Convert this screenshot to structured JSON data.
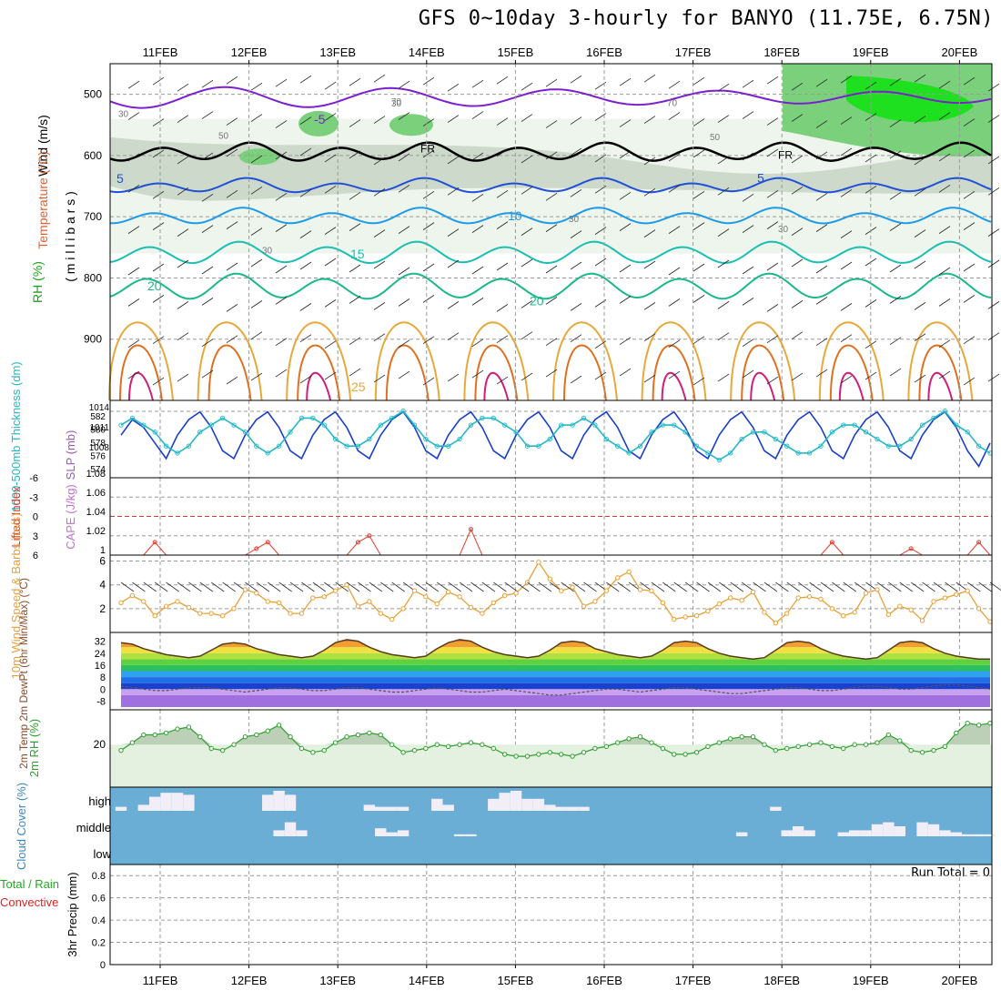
{
  "title": "GFS 0~10day 3-hourly for BANYO (11.75E, 6.75N)",
  "colors": {
    "frame": "#000000",
    "grid": "#9a9a9a",
    "temp_neg": "#7b1fd1",
    "temp_0": "#000000",
    "temp_5": "#2050d8",
    "temp_10": "#1e9be8",
    "temp_15": "#1abfb2",
    "temp_20": "#1bb88a",
    "temp_25": "#e8a83a",
    "temp_30": "#e07020",
    "temp_35": "#d0207a",
    "slp": "#1a3fcc",
    "thickness": "#22b8c8",
    "lifted": "#e23a2a",
    "wind": "#e8a035",
    "rh": "#2ea02e",
    "cloud_bg": "#6aaed6",
    "cloud_fill": "#f2eef8",
    "precip_total": "#22aa22",
    "precip_conv": "#e02222"
  },
  "chart_data": [
    {
      "type": "line",
      "panel": "upper-air",
      "ylabel_parts": [
        "Wind (m/s)",
        "Temperature (°C)",
        "RH (%)"
      ],
      "yunit": "( m i l l i b a r s )",
      "yticks": [
        500,
        600,
        700,
        800,
        900
      ],
      "ylim": [
        1000,
        450
      ],
      "x_dates": [
        "11FEB",
        "12FEB",
        "13FEB",
        "14FEB",
        "15FEB",
        "16FEB",
        "17FEB",
        "18FEB",
        "19FEB",
        "20FEB"
      ],
      "contour_labels": {
        "temperature": [
          "-5",
          "FR",
          "5",
          "10",
          "15",
          "20",
          "20",
          "25",
          "5",
          "FR"
        ],
        "rh": [
          "30",
          "50",
          "70",
          "30",
          "30",
          "50",
          "70",
          "30",
          "30"
        ]
      },
      "isotherm_levels_mb": {
        "minus5": 505,
        "freezing": 595,
        "plus5": 650,
        "plus10": 700,
        "plus15": 760,
        "plus20": 815
      }
    },
    {
      "type": "line",
      "panel": "slp-thickness",
      "ylabel_left": "1000-500mb Thickness (dm)",
      "ylabel_right": "SLP (mb)",
      "yticks_left": [
        574,
        576,
        578,
        580,
        582
      ],
      "yticks_right": [
        1008,
        1011,
        1014
      ],
      "series": [
        {
          "name": "SLP (mb)",
          "values": [
            1012,
            1014,
            1013,
            1011,
            1009,
            1012,
            1014,
            1015,
            1013,
            1010,
            1009,
            1012,
            1014,
            1015,
            1013,
            1010,
            1009,
            1012,
            1014,
            1015,
            1013,
            1010,
            1009,
            1012,
            1014,
            1015,
            1013,
            1010,
            1009,
            1012,
            1014,
            1015,
            1013,
            1010,
            1009,
            1012,
            1014,
            1015,
            1013,
            1010,
            1009,
            1012,
            1014,
            1015,
            1013,
            1010,
            1009,
            1012,
            1014,
            1015,
            1013,
            1010,
            1009,
            1012,
            1014,
            1015,
            1013,
            1010,
            1009,
            1012,
            1014,
            1015,
            1013,
            1010,
            1009,
            1012,
            1014,
            1015,
            1013,
            1010,
            1009,
            1012,
            1014,
            1015,
            1013,
            1010,
            1008,
            1011
          ]
        },
        {
          "name": "1000-500mb Thickness (dm)",
          "values": [
            580,
            581,
            580,
            579,
            577,
            576,
            577,
            579,
            580,
            581,
            580,
            579,
            577,
            576,
            577,
            579,
            581,
            581,
            580,
            578,
            577,
            577,
            578,
            580,
            581,
            582,
            580,
            578,
            577,
            577,
            578,
            580,
            581,
            581,
            580,
            579,
            577,
            577,
            578,
            580,
            580,
            581,
            580,
            578,
            577,
            576,
            577,
            579,
            580,
            580,
            579,
            577,
            576,
            575,
            576,
            578,
            579,
            579,
            578,
            577,
            576,
            576,
            577,
            579,
            580,
            580,
            579,
            578,
            577,
            577,
            578,
            580,
            581,
            582,
            580,
            579,
            577,
            576
          ]
        }
      ]
    },
    {
      "type": "line",
      "panel": "lifted-cape",
      "ylabel_left": "Lifted Index",
      "ylabel_right": "CAPE (J/kg)",
      "yticks_left": [
        -6,
        -3,
        0,
        3,
        6
      ],
      "yticks_right": [
        1,
        1.02,
        1.04,
        1.06,
        1.08
      ],
      "series": [
        {
          "name": "Lifted Index",
          "values": [
            6,
            6,
            6,
            4,
            6,
            6,
            6,
            6,
            6,
            6,
            6,
            6,
            5,
            4,
            6,
            6,
            6,
            6,
            6,
            6,
            6,
            4,
            3,
            6,
            6,
            6,
            6,
            6,
            6,
            6,
            6,
            2,
            6,
            6,
            6,
            6,
            6,
            6,
            6,
            6,
            6,
            6,
            6,
            6,
            6,
            6,
            6,
            6,
            6,
            6,
            6,
            6,
            6,
            6,
            6,
            6,
            6,
            6,
            6,
            6,
            6,
            6,
            6,
            4,
            6,
            6,
            6,
            6,
            6,
            6,
            5,
            6,
            6,
            6,
            6,
            6,
            4,
            6
          ]
        }
      ]
    },
    {
      "type": "line",
      "panel": "wind10m",
      "ylabel": "10m Wind Speed & Barbs (m/s)",
      "yticks": [
        2,
        4,
        6
      ],
      "ylim": [
        0,
        6.5
      ],
      "series": [
        {
          "name": "10m Wind Speed",
          "values": [
            2.5,
            3.1,
            2.6,
            1.4,
            2.2,
            2.6,
            2.1,
            1.6,
            1.6,
            1.4,
            2.0,
            3.6,
            3.3,
            2.6,
            2.5,
            1.6,
            1.6,
            2.9,
            3.0,
            3.5,
            4.0,
            2.2,
            2.6,
            1.6,
            1.1,
            2.0,
            3.5,
            3.0,
            2.4,
            3.4,
            3.0,
            2.1,
            1.6,
            2.5,
            3.1,
            3.3,
            4.2,
            5.9,
            4.5,
            3.5,
            3.8,
            2.2,
            2.6,
            3.5,
            4.6,
            5.1,
            3.6,
            3.5,
            2.5,
            1.1,
            1.3,
            1.4,
            1.8,
            2.4,
            2.9,
            2.7,
            3.4,
            1.7,
            0.8,
            1.6,
            2.9,
            3.0,
            2.8,
            2.0,
            1.4,
            1.7,
            3.3,
            3.6,
            1.5,
            2.2,
            1.9,
            1.0,
            2.6,
            2.9,
            3.2,
            3.5,
            2.0,
            0.9
          ]
        }
      ]
    },
    {
      "type": "area",
      "panel": "temp2m",
      "ylabel": "2m Temp 2m DewPt (6hr Min/Max) (°C)",
      "yticks": [
        -8,
        0,
        8,
        16,
        24,
        32
      ],
      "series": [
        {
          "name": "2m Temp",
          "values": [
            31,
            30,
            27,
            25,
            23,
            22,
            21,
            22,
            26,
            30,
            31,
            30,
            27,
            25,
            23,
            22,
            21,
            22,
            26,
            31,
            33,
            32,
            28,
            25,
            23,
            22,
            21,
            22,
            27,
            31,
            33,
            32,
            28,
            25,
            23,
            22,
            21,
            22,
            26,
            31,
            32,
            31,
            27,
            25,
            23,
            22,
            21,
            22,
            26,
            31,
            32,
            31,
            27,
            24,
            22,
            21,
            20,
            21,
            26,
            31,
            32,
            31,
            27,
            24,
            22,
            21,
            20,
            21,
            26,
            31,
            32,
            31,
            27,
            24,
            22,
            21,
            20,
            20
          ]
        },
        {
          "name": "2m DewPt",
          "values": [
            2,
            1,
            0,
            -1,
            -1,
            0,
            1,
            1,
            1,
            0,
            -1,
            -2,
            -1,
            0,
            1,
            1,
            0,
            -1,
            -1,
            0,
            1,
            1,
            0,
            -1,
            -2,
            -2,
            -1,
            0,
            1,
            0,
            -1,
            -2,
            -2,
            -1,
            0,
            -1,
            -2,
            -3,
            -4,
            -4,
            -3,
            -2,
            -1,
            0,
            0,
            -1,
            -2,
            -1,
            0,
            1,
            1,
            0,
            -1,
            -2,
            -3,
            -3,
            -2,
            -1,
            0,
            1,
            1,
            0,
            -1,
            -1,
            0,
            1,
            2,
            2,
            1,
            0,
            0,
            1,
            2,
            3,
            3,
            2,
            1,
            0
          ]
        }
      ]
    },
    {
      "type": "area",
      "panel": "rh2m",
      "ylabel": "2m RH (%)",
      "yticks": [
        20
      ],
      "series": [
        {
          "name": "2m RH",
          "values": [
            17,
            21,
            25,
            25,
            26,
            28,
            29,
            24,
            18,
            17,
            20,
            24,
            25,
            27,
            30,
            24,
            18,
            16,
            17,
            21,
            24,
            25,
            26,
            25,
            20,
            16,
            17,
            18,
            20,
            19,
            20,
            21,
            20,
            18,
            15,
            14,
            14,
            15,
            16,
            15,
            14,
            16,
            18,
            19,
            21,
            23,
            24,
            21,
            18,
            15,
            15,
            16,
            19,
            21,
            23,
            24,
            24,
            20,
            17,
            18,
            19,
            20,
            21,
            19,
            18,
            20,
            20,
            21,
            25,
            22,
            17,
            16,
            17,
            19,
            26,
            31,
            30,
            31
          ]
        }
      ]
    },
    {
      "type": "bar",
      "panel": "cloud-cover",
      "ylabel": "Cloud Cover (%)",
      "levels": [
        "high",
        "middle",
        "low"
      ],
      "series": [
        {
          "name": "high",
          "values": [
            0.2,
            0,
            0.3,
            0.7,
            0.9,
            0.9,
            0.8,
            0,
            0,
            0,
            0,
            0,
            0,
            0.8,
            1,
            0.8,
            0,
            0,
            0,
            0,
            0,
            0,
            0.3,
            0.2,
            0.2,
            0.2,
            0,
            0,
            0.6,
            0.3,
            0,
            0,
            0,
            0.6,
            0.9,
            1,
            0.6,
            0.6,
            0.3,
            0.2,
            0.2,
            0.2,
            0,
            0,
            0,
            0,
            0,
            0,
            0,
            0,
            0,
            0,
            0,
            0,
            0,
            0,
            0,
            0,
            0.2,
            0,
            0,
            0,
            0,
            0,
            0,
            0,
            0,
            0,
            0,
            0,
            0,
            0,
            0,
            0,
            0,
            0,
            0,
            0
          ]
        },
        {
          "name": "middle",
          "values": [
            0,
            0,
            0,
            0,
            0,
            0,
            0,
            0,
            0,
            0,
            0,
            0,
            0,
            0,
            0.3,
            0.7,
            0.3,
            0,
            0,
            0,
            0,
            0,
            0,
            0.4,
            0.2,
            0.3,
            0,
            0,
            0,
            0,
            0.1,
            0.1,
            0,
            0,
            0,
            0,
            0,
            0,
            0,
            0,
            0,
            0,
            0,
            0,
            0,
            0,
            0,
            0,
            0,
            0,
            0,
            0,
            0,
            0,
            0,
            0.2,
            0,
            0,
            0,
            0.3,
            0.5,
            0.3,
            0,
            0,
            0.2,
            0.3,
            0.3,
            0.6,
            0.7,
            0.5,
            0,
            0.7,
            0.6,
            0.3,
            0.2,
            0.1,
            0.1,
            0.1
          ]
        }
      ]
    },
    {
      "type": "bar",
      "panel": "precip",
      "ylabel_parts": [
        "Total / Rain",
        "Convective"
      ],
      "ylabel": "3hr Precip (mm)",
      "yticks": [
        0,
        0.2,
        0.4,
        0.6,
        0.8
      ],
      "ylim": [
        0,
        0.9
      ],
      "run_total": "Run Total = 0",
      "series": [
        {
          "name": "Total / Rain",
          "values": [
            0,
            0,
            0,
            0,
            0,
            0,
            0,
            0,
            0,
            0
          ]
        },
        {
          "name": "Convective",
          "values": [
            0,
            0,
            0,
            0,
            0,
            0,
            0,
            0,
            0,
            0
          ]
        }
      ]
    }
  ]
}
